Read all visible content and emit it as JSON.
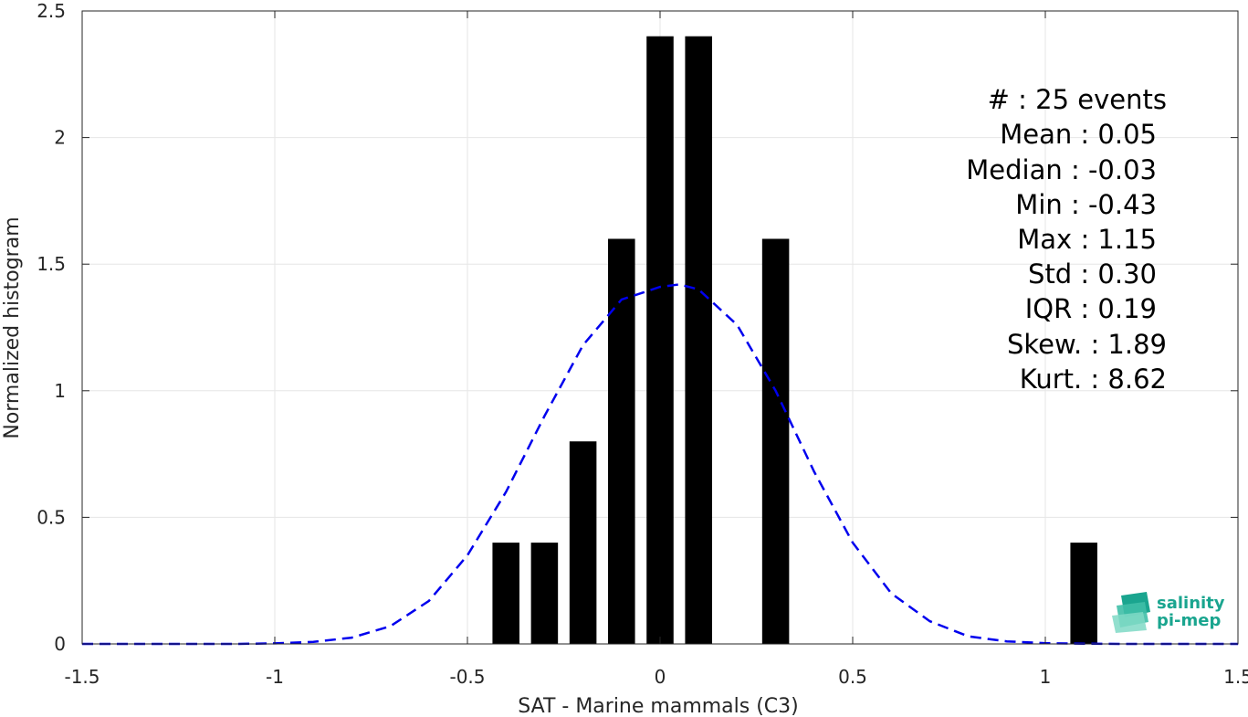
{
  "chart_data": {
    "type": "bar",
    "xlabel": "SAT - Marine mammals (C3)",
    "ylabel": "Normalized histogram",
    "xlim": [
      -1.5,
      1.5
    ],
    "ylim": [
      0,
      2.5
    ],
    "xticks": [
      -1.5,
      -1,
      -0.5,
      0,
      0.5,
      1,
      1.5
    ],
    "xtick_labels": [
      "-1.5",
      "-1",
      "-0.5",
      "0",
      "0.5",
      "1",
      "1.5"
    ],
    "yticks": [
      0,
      0.5,
      1,
      1.5,
      2,
      2.5
    ],
    "ytick_labels": [
      "0",
      "0.5",
      "1",
      "1.5",
      "2",
      "2.5"
    ],
    "grid": true,
    "bar_color": "#000000",
    "bin_width": 0.1,
    "bars": [
      {
        "x": -0.4,
        "value": 0.4
      },
      {
        "x": -0.3,
        "value": 0.4
      },
      {
        "x": -0.2,
        "value": 0.8
      },
      {
        "x": -0.1,
        "value": 1.6
      },
      {
        "x": 0.0,
        "value": 2.4
      },
      {
        "x": 0.1,
        "value": 2.4
      },
      {
        "x": 0.3,
        "value": 1.6
      },
      {
        "x": 1.1,
        "value": 0.4
      }
    ],
    "fit_curve": {
      "style": "dashed",
      "color": "#0000ee",
      "x": [
        -1.5,
        -1.4,
        -1.3,
        -1.2,
        -1.1,
        -1.0,
        -0.9,
        -0.8,
        -0.7,
        -0.6,
        -0.5,
        -0.4,
        -0.3,
        -0.2,
        -0.1,
        0.0,
        0.05,
        0.1,
        0.2,
        0.3,
        0.4,
        0.5,
        0.6,
        0.7,
        0.8,
        0.9,
        1.0,
        1.1,
        1.2,
        1.3,
        1.4,
        1.5
      ],
      "y": [
        0.0,
        0.0,
        0.0,
        0.0,
        0.0,
        0.002,
        0.008,
        0.025,
        0.07,
        0.17,
        0.35,
        0.6,
        0.9,
        1.18,
        1.36,
        1.41,
        1.42,
        1.4,
        1.26,
        1.0,
        0.68,
        0.4,
        0.2,
        0.09,
        0.03,
        0.01,
        0.003,
        0.001,
        0.0,
        0.0,
        0.0,
        0.0
      ]
    },
    "stats": [
      "#  : 25 events",
      "Mean : 0.05",
      "Median : -0.03",
      "Min : -0.43",
      "Max : 1.15",
      "Std : 0.30",
      "IQR : 0.19",
      "Skew. : 1.89",
      "Kurt. : 8.62"
    ]
  },
  "logo": {
    "line1": "salinity",
    "line2": "pi-mep",
    "color": "#1aa58f"
  }
}
